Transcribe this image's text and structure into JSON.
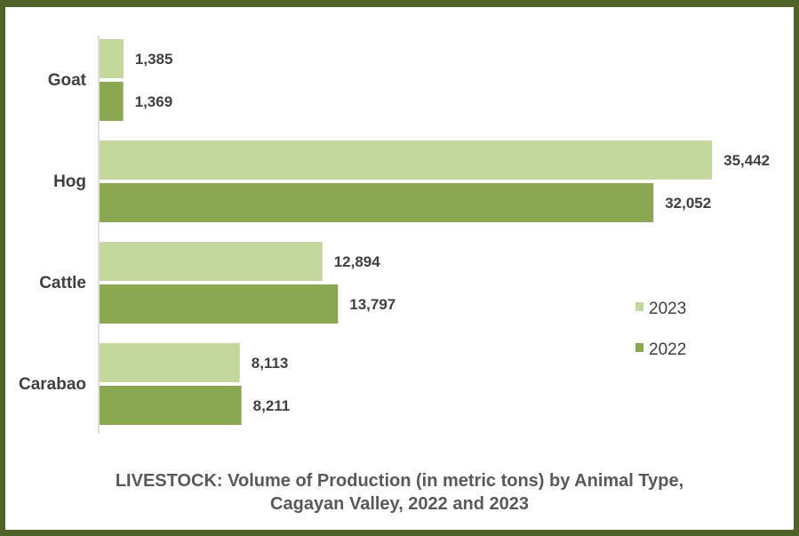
{
  "chart_data": {
    "type": "bar",
    "orientation": "horizontal",
    "title_lines": [
      "LIVESTOCK: Volume of Production (in metric tons) by  Animal Type,",
      "Cagayan Valley, 2022 and 2023"
    ],
    "categories": [
      "Goat",
      "Hog",
      "Cattle",
      "Carabao"
    ],
    "series": [
      {
        "name": "2023",
        "color": "#c3d69b",
        "values": [
          1385,
          35442,
          12894,
          8113
        ],
        "labels": [
          "1,385",
          "35,442",
          "12,894",
          "8,113"
        ]
      },
      {
        "name": "2022",
        "color": "#8ba74f",
        "values": [
          1369,
          32052,
          13797,
          8211
        ],
        "labels": [
          "1,369",
          "32,052",
          "13,797",
          "8,211"
        ]
      }
    ],
    "xlim": [
      0,
      36000
    ],
    "grid": false,
    "legend_position": "right"
  }
}
